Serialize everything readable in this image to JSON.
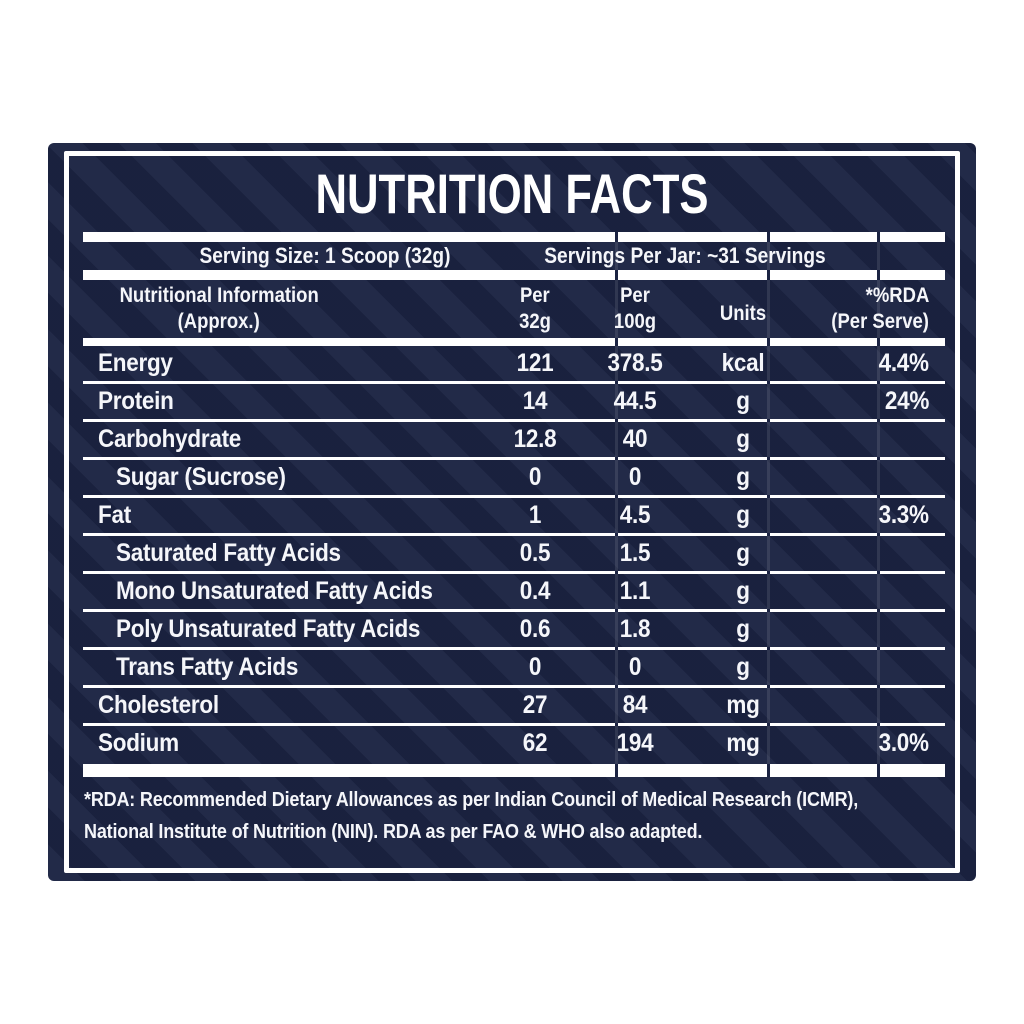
{
  "colors": {
    "background": "#ffffff",
    "panel_navy": "#1b2342",
    "rule_white": "#ffffff",
    "text_white": "#f5f6fa"
  },
  "label": {
    "title": "NUTRITION FACTS",
    "serving": {
      "size": "Serving Size: 1 Scoop (32g)",
      "per_jar": "Servings Per Jar: ~31 Servings"
    },
    "table": {
      "header": {
        "name": [
          "Nutritional Information",
          "(Approx.)"
        ],
        "per_32g": [
          "Per",
          "32g"
        ],
        "per_100g": [
          "Per",
          "100g"
        ],
        "units": "Units",
        "rda": [
          "*%RDA",
          "(Per Serve)"
        ]
      },
      "rows": [
        {
          "name": "Energy",
          "per_32g": "121",
          "per_100g": "378.5",
          "units": "kcal",
          "rda": "4.4%",
          "indent": false
        },
        {
          "name": "Protein",
          "per_32g": "14",
          "per_100g": "44.5",
          "units": "g",
          "rda": "24%",
          "indent": false
        },
        {
          "name": "Carbohydrate",
          "per_32g": "12.8",
          "per_100g": "40",
          "units": "g",
          "rda": "",
          "indent": false
        },
        {
          "name": "Sugar (Sucrose)",
          "per_32g": "0",
          "per_100g": "0",
          "units": "g",
          "rda": "",
          "indent": true
        },
        {
          "name": "Fat",
          "per_32g": "1",
          "per_100g": "4.5",
          "units": "g",
          "rda": "3.3%",
          "indent": false
        },
        {
          "name": "Saturated Fatty Acids",
          "per_32g": "0.5",
          "per_100g": "1.5",
          "units": "g",
          "rda": "",
          "indent": true
        },
        {
          "name": "Mono Unsaturated Fatty Acids",
          "per_32g": "0.4",
          "per_100g": "1.1",
          "units": "g",
          "rda": "",
          "indent": true
        },
        {
          "name": "Poly Unsaturated Fatty Acids",
          "per_32g": "0.6",
          "per_100g": "1.8",
          "units": "g",
          "rda": "",
          "indent": true
        },
        {
          "name": "Trans Fatty Acids",
          "per_32g": "0",
          "per_100g": "0",
          "units": "g",
          "rda": "",
          "indent": true
        },
        {
          "name": "Cholesterol",
          "per_32g": "27",
          "per_100g": "84",
          "units": "mg",
          "rda": "",
          "indent": false
        },
        {
          "name": "Sodium",
          "per_32g": "62",
          "per_100g": "194",
          "units": "mg",
          "rda": "3.0%",
          "indent": false
        }
      ]
    },
    "footnote": [
      "*RDA: Recommended Dietary Allowances as per Indian Council of Medical Research (ICMR),",
      "National Institute of Nutrition (NIN). RDA as per FAO & WHO also adapted."
    ]
  }
}
